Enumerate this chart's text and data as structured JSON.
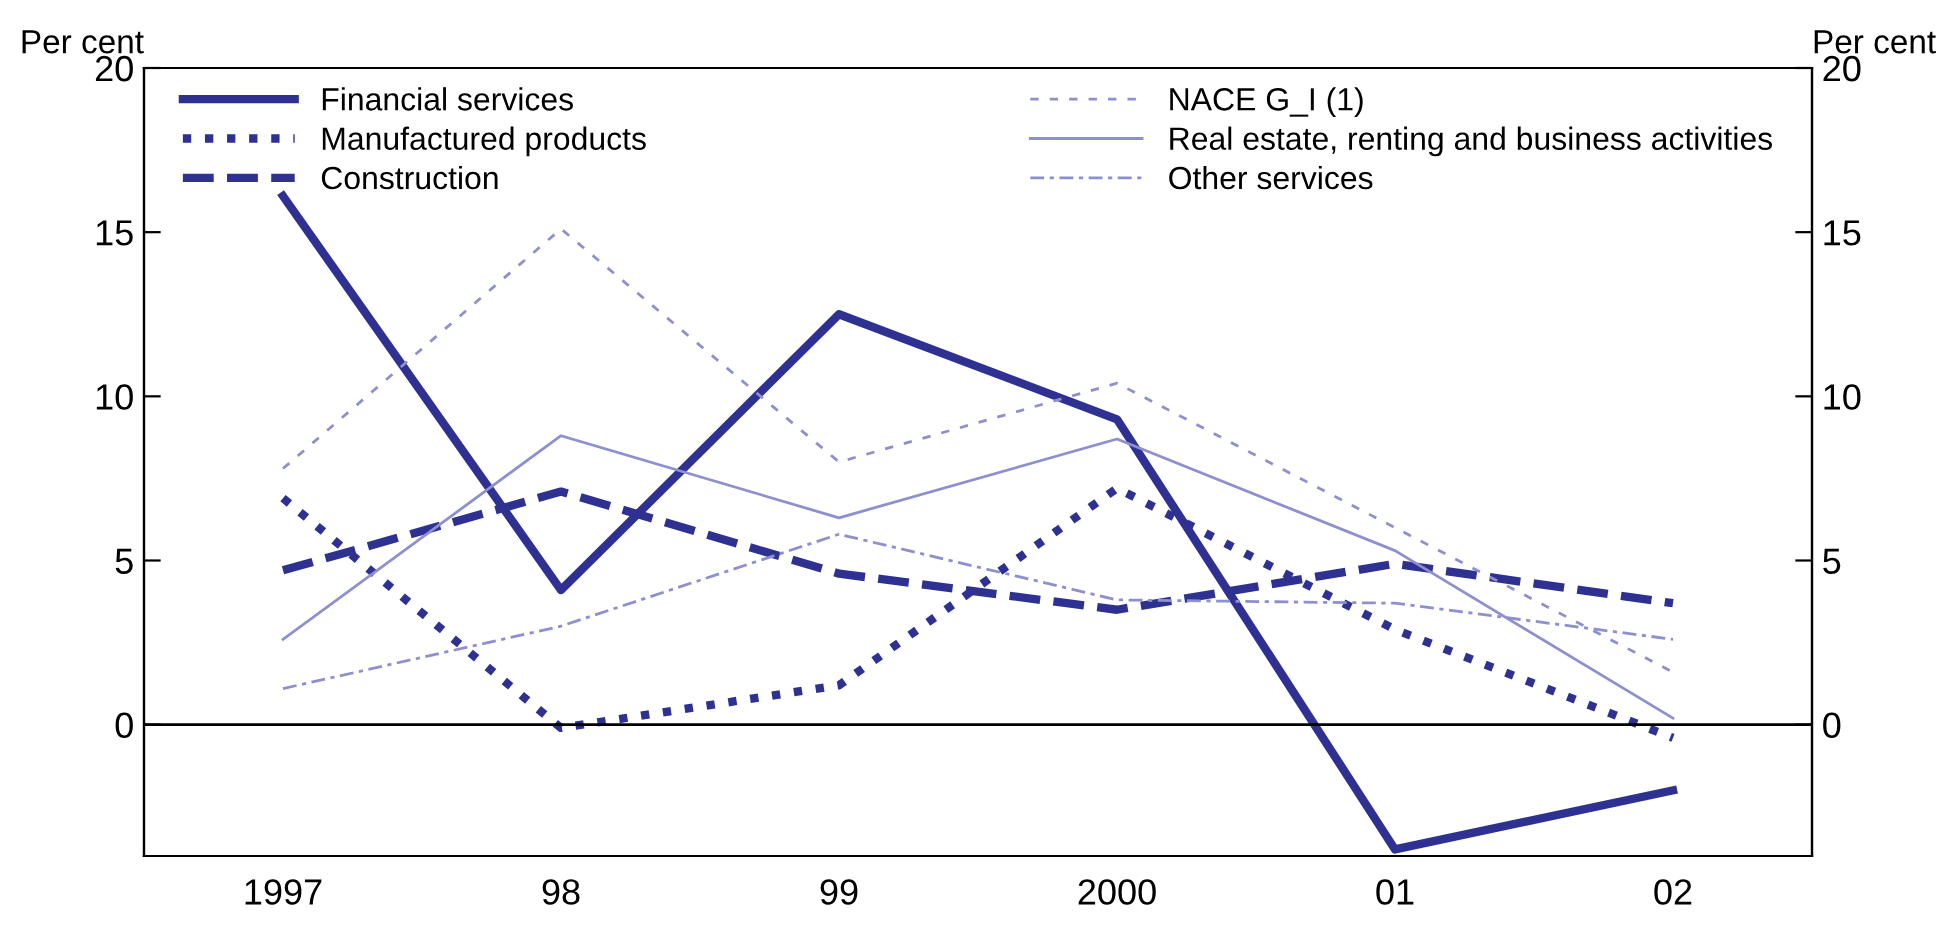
{
  "chart_data": {
    "type": "line",
    "ylabel": "Per cent",
    "y2label": "Per cent",
    "categories": [
      "1997",
      "98",
      "99",
      "2000",
      "01",
      "02"
    ],
    "ylim": [
      -4,
      20
    ],
    "yticks": [
      0,
      5,
      10,
      15,
      20
    ],
    "y2lim": [
      -4,
      20
    ],
    "y2ticks": [
      0,
      5,
      10,
      15,
      20
    ],
    "grid": false,
    "legend": "top",
    "marker": "none",
    "ref_lines": [
      {
        "axis": "y",
        "value": 0,
        "color": "#000000",
        "line_style": "solid"
      }
    ],
    "series": [
      {
        "name": "Financial services",
        "color": "#2e3192",
        "line_style": "solid",
        "values": [
          16.1,
          4.1,
          12.5,
          9.3,
          -3.8,
          -2.0
        ]
      },
      {
        "name": "Manufactured products",
        "color": "#2e3192",
        "line_style": "dotted",
        "values": [
          6.9,
          -0.1,
          1.2,
          7.2,
          2.9,
          -0.4
        ]
      },
      {
        "name": "Construction",
        "color": "#2e3192",
        "line_style": "dashed",
        "values": [
          4.7,
          7.1,
          4.6,
          3.5,
          4.9,
          3.7
        ]
      },
      {
        "name": "NACE G_I (1)",
        "color": "#8d8fcf",
        "line_style": "dotted",
        "values": [
          7.8,
          15.1,
          8.0,
          10.4,
          6.0,
          1.6
        ]
      },
      {
        "name": "Real estate, renting and business activities",
        "color": "#8d8fcf",
        "line_style": "solid",
        "values": [
          2.6,
          8.8,
          6.3,
          8.7,
          5.3,
          0.2
        ]
      },
      {
        "name": "Other services",
        "color": "#8d8fcf",
        "line_style": "dashed",
        "values": [
          1.1,
          3.0,
          5.8,
          3.8,
          3.7,
          2.6
        ]
      }
    ]
  }
}
